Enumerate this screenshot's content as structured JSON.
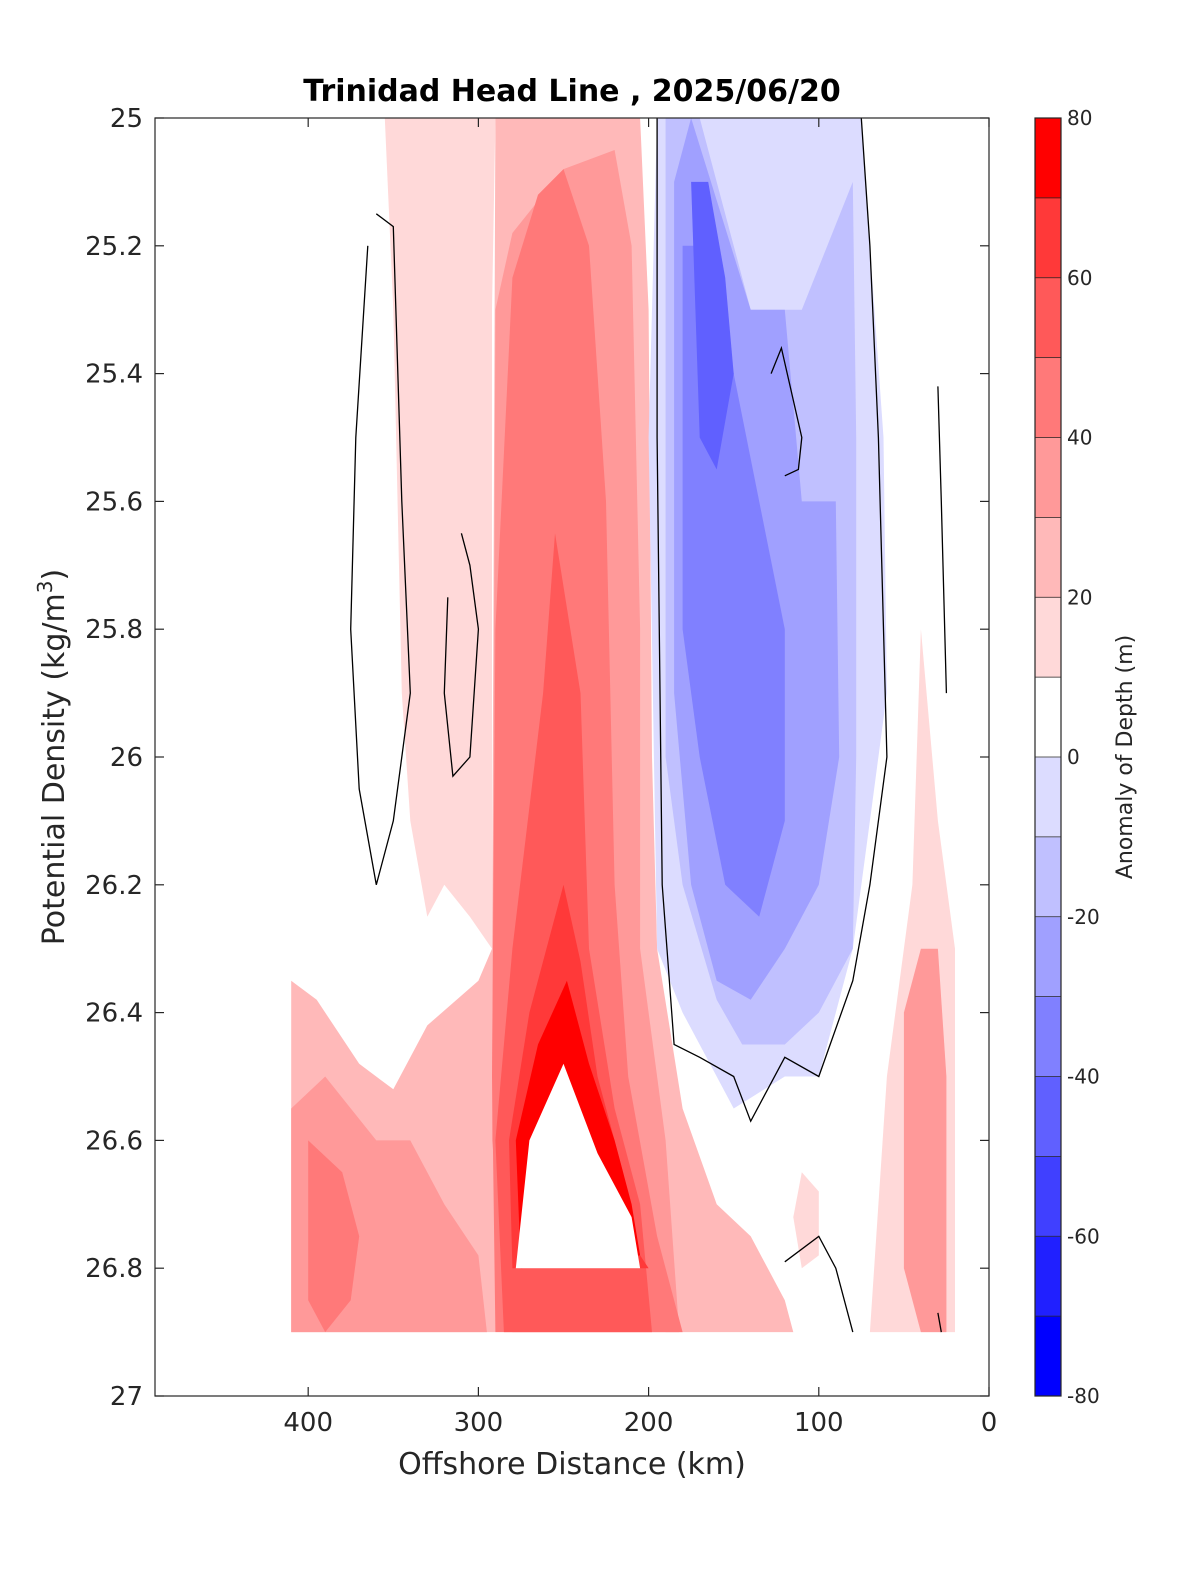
{
  "chart_data": {
    "type": "contour",
    "title": "Trinidad Head Line , 2025/06/20",
    "xlabel": "Offshore Distance (km)",
    "ylabel": "Potential Density (kg/m",
    "ylabel_sup": "3",
    "ylabel_close": ")",
    "xlim": [
      490,
      0
    ],
    "ylim": [
      25,
      27
    ],
    "x_ticks": [
      400,
      300,
      200,
      100,
      0
    ],
    "x_tick_labels": [
      "400",
      "300",
      "200",
      "100",
      "0"
    ],
    "y_ticks": [
      25,
      25.2,
      25.4,
      25.6,
      25.8,
      26,
      26.2,
      26.4,
      26.6,
      26.8,
      27
    ],
    "y_tick_labels": [
      "25",
      "25.2",
      "25.4",
      "25.6",
      "25.8",
      "26",
      "26.2",
      "26.4",
      "26.6",
      "26.8",
      "27"
    ],
    "colorbar": {
      "label": "Anomaly of Depth (m)",
      "limits": [
        -80,
        80
      ],
      "levels": [
        -80,
        -70,
        -60,
        -50,
        -40,
        -30,
        -20,
        -10,
        0,
        10,
        20,
        30,
        40,
        50,
        60,
        70,
        80
      ],
      "tick_values": [
        80,
        60,
        40,
        20,
        0,
        -20,
        -40,
        -60,
        -80
      ],
      "tick_labels": [
        "80",
        "60",
        "40",
        "20",
        "0",
        "-20",
        "-40",
        "-60",
        "-80"
      ],
      "colors": [
        "#0000ff",
        "#2020ff",
        "#4040ff",
        "#6060ff",
        "#8080ff",
        "#a0a0ff",
        "#c0c0ff",
        "#dcdcff",
        "#ffffff",
        "#ffd9d9",
        "#ffb9b9",
        "#ff9999",
        "#ff7979",
        "#ff5959",
        "#ff3939",
        "#ff0000"
      ]
    },
    "regions": [
      {
        "name": "warm-outer-band",
        "level": 10,
        "points": [
          [
            410,
            25
          ],
          [
            355,
            25
          ],
          [
            350,
            25.3
          ],
          [
            345,
            25.9
          ],
          [
            340,
            26.1
          ],
          [
            330,
            26.25
          ],
          [
            320,
            26.2
          ],
          [
            305,
            26.25
          ],
          [
            292,
            26.3
          ],
          [
            292,
            25.3
          ],
          [
            290,
            25
          ],
          [
            410,
            25.0
          ]
        ]
      },
      {
        "name": "warm-near-ridge",
        "level": 20,
        "points": [
          [
            290,
            25
          ],
          [
            205,
            25
          ],
          [
            200,
            25.3
          ],
          [
            198,
            26
          ],
          [
            195,
            26.3
          ],
          [
            180,
            26.55
          ],
          [
            160,
            26.7
          ],
          [
            140,
            26.75
          ],
          [
            120,
            26.85
          ],
          [
            115,
            26.9
          ],
          [
            190,
            26.9
          ],
          [
            200,
            26.8
          ],
          [
            280,
            26.8
          ],
          [
            290,
            26.9
          ],
          [
            410,
            26.9
          ],
          [
            410,
            26.35
          ],
          [
            395,
            26.38
          ],
          [
            370,
            26.48
          ],
          [
            350,
            26.52
          ],
          [
            330,
            26.42
          ],
          [
            300,
            26.35
          ],
          [
            292,
            26.3
          ]
        ]
      },
      {
        "name": "warm-core-30",
        "level": 30,
        "points": [
          [
            290,
            25.3
          ],
          [
            280,
            25.18
          ],
          [
            250,
            25.08
          ],
          [
            220,
            25.05
          ],
          [
            210,
            25.2
          ],
          [
            205,
            25.8
          ],
          [
            205,
            26.3
          ],
          [
            190,
            26.6
          ],
          [
            182,
            26.9
          ],
          [
            280,
            26.9
          ],
          [
            292,
            26.6
          ]
        ]
      },
      {
        "name": "warm-core-40",
        "level": 40,
        "points": [
          [
            280,
            25.25
          ],
          [
            265,
            25.12
          ],
          [
            250,
            25.08
          ],
          [
            235,
            25.2
          ],
          [
            225,
            25.6
          ],
          [
            220,
            26.2
          ],
          [
            212,
            26.5
          ],
          [
            195,
            26.75
          ],
          [
            180,
            26.9
          ],
          [
            290,
            26.9
          ],
          [
            292,
            26.5
          ],
          [
            290,
            25.8
          ]
        ]
      },
      {
        "name": "warm-core-50",
        "level": 50,
        "points": [
          [
            255,
            25.65
          ],
          [
            240,
            25.9
          ],
          [
            235,
            26.3
          ],
          [
            220,
            26.55
          ],
          [
            205,
            26.7
          ],
          [
            198,
            26.9
          ],
          [
            285,
            26.9
          ],
          [
            290,
            26.6
          ],
          [
            280,
            26.3
          ],
          [
            262,
            25.9
          ]
        ]
      },
      {
        "name": "warm-core-60",
        "level": 60,
        "points": [
          [
            250,
            26.2
          ],
          [
            240,
            26.32
          ],
          [
            230,
            26.5
          ],
          [
            215,
            26.65
          ],
          [
            205,
            26.78
          ],
          [
            200,
            26.8
          ],
          [
            280,
            26.8
          ],
          [
            282,
            26.6
          ],
          [
            270,
            26.4
          ]
        ]
      },
      {
        "name": "warm-core-70",
        "level": 70,
        "points": [
          [
            248,
            26.35
          ],
          [
            235,
            26.48
          ],
          [
            220,
            26.6
          ],
          [
            210,
            26.7
          ],
          [
            205,
            26.78
          ],
          [
            275,
            26.8
          ],
          [
            278,
            26.6
          ],
          [
            265,
            26.45
          ]
        ]
      },
      {
        "name": "warm-core-80",
        "level": 80,
        "points": [
          [
            250,
            26.48
          ],
          [
            230,
            26.62
          ],
          [
            210,
            26.72
          ],
          [
            205,
            26.8
          ],
          [
            278,
            26.8
          ],
          [
            270,
            26.6
          ]
        ]
      },
      {
        "name": "warm-deep-west",
        "level": 30,
        "points": [
          [
            410,
            26.55
          ],
          [
            390,
            26.5
          ],
          [
            360,
            26.6
          ],
          [
            340,
            26.6
          ],
          [
            320,
            26.7
          ],
          [
            300,
            26.78
          ],
          [
            295,
            26.9
          ],
          [
            410,
            26.9
          ]
        ]
      },
      {
        "name": "warm-deep-west-40",
        "level": 40,
        "points": [
          [
            400,
            26.6
          ],
          [
            380,
            26.65
          ],
          [
            370,
            26.75
          ],
          [
            375,
            26.85
          ],
          [
            390,
            26.9
          ],
          [
            400,
            26.85
          ]
        ]
      },
      {
        "name": "warm-near-coast",
        "level": 10,
        "points": [
          [
            40,
            25.8
          ],
          [
            30,
            26.1
          ],
          [
            20,
            26.3
          ],
          [
            20,
            26.9
          ],
          [
            70,
            26.9
          ],
          [
            60,
            26.5
          ],
          [
            45,
            26.2
          ]
        ]
      },
      {
        "name": "warm-near-coast-30",
        "level": 30,
        "points": [
          [
            40,
            26.3
          ],
          [
            50,
            26.4
          ],
          [
            50,
            26.8
          ],
          [
            40,
            26.9
          ],
          [
            25,
            26.9
          ],
          [
            25,
            26.5
          ],
          [
            30,
            26.3
          ]
        ]
      },
      {
        "name": "warm-small",
        "level": 10,
        "points": [
          [
            110,
            26.65
          ],
          [
            100,
            26.68
          ],
          [
            100,
            26.78
          ],
          [
            110,
            26.8
          ],
          [
            115,
            26.72
          ]
        ]
      },
      {
        "name": "cold-10",
        "level": -10,
        "points": [
          [
            195,
            25
          ],
          [
            200,
            25.5
          ],
          [
            195,
            26.3
          ],
          [
            180,
            26.4
          ],
          [
            160,
            26.5
          ],
          [
            150,
            26.55
          ],
          [
            120,
            26.5
          ],
          [
            100,
            26.5
          ],
          [
            80,
            26.3
          ],
          [
            70,
            26.1
          ],
          [
            60,
            25.9
          ],
          [
            62,
            25.5
          ],
          [
            70,
            25.2
          ],
          [
            75,
            25
          ]
        ]
      },
      {
        "name": "cold-20",
        "level": -20,
        "points": [
          [
            190,
            25
          ],
          [
            190,
            26
          ],
          [
            180,
            26.2
          ],
          [
            160,
            26.38
          ],
          [
            145,
            26.45
          ],
          [
            120,
            26.45
          ],
          [
            100,
            26.4
          ],
          [
            80,
            26.3
          ],
          [
            78,
            26
          ],
          [
            78,
            25.5
          ],
          [
            80,
            25.1
          ],
          [
            110,
            25.3
          ],
          [
            140,
            25.3
          ],
          [
            170,
            25
          ]
        ]
      },
      {
        "name": "cold-30",
        "level": -30,
        "points": [
          [
            185,
            25.1
          ],
          [
            185,
            25.9
          ],
          [
            175,
            26.2
          ],
          [
            160,
            26.35
          ],
          [
            140,
            26.38
          ],
          [
            120,
            26.3
          ],
          [
            100,
            26.2
          ],
          [
            88,
            26
          ],
          [
            90,
            25.6
          ],
          [
            110,
            25.6
          ],
          [
            120,
            25.3
          ],
          [
            140,
            25.3
          ],
          [
            175,
            25
          ]
        ]
      },
      {
        "name": "cold-40",
        "level": -40,
        "points": [
          [
            180,
            25.2
          ],
          [
            180,
            25.8
          ],
          [
            170,
            26
          ],
          [
            155,
            26.2
          ],
          [
            135,
            26.25
          ],
          [
            120,
            26.1
          ],
          [
            120,
            25.8
          ],
          [
            135,
            25.6
          ],
          [
            150,
            25.4
          ],
          [
            165,
            25.2
          ]
        ]
      },
      {
        "name": "cold-50",
        "level": -50,
        "points": [
          [
            175,
            25.1
          ],
          [
            170,
            25.5
          ],
          [
            160,
            25.55
          ],
          [
            150,
            25.4
          ],
          [
            155,
            25.25
          ],
          [
            165,
            25.1
          ]
        ]
      }
    ],
    "contour_lines": [
      {
        "points": [
          [
            360,
            25.15
          ],
          [
            350,
            25.17
          ],
          [
            345,
            25.6
          ],
          [
            340,
            25.9
          ],
          [
            350,
            26.1
          ],
          [
            360,
            26.2
          ],
          [
            370,
            26.05
          ],
          [
            375,
            25.8
          ],
          [
            372,
            25.5
          ],
          [
            365,
            25.2
          ]
        ]
      },
      {
        "points": [
          [
            310,
            25.65
          ],
          [
            305,
            25.7
          ],
          [
            300,
            25.8
          ],
          [
            305,
            26
          ],
          [
            315,
            26.03
          ],
          [
            320,
            25.9
          ],
          [
            318,
            25.75
          ]
        ]
      },
      {
        "points": [
          [
            195,
            25
          ],
          [
            195,
            25.5
          ],
          [
            192,
            26.2
          ],
          [
            185,
            26.45
          ],
          [
            170,
            26.47
          ],
          [
            150,
            26.5
          ],
          [
            140,
            26.57
          ],
          [
            120,
            26.47
          ],
          [
            100,
            26.5
          ],
          [
            80,
            26.35
          ],
          [
            70,
            26.2
          ],
          [
            60,
            26
          ],
          [
            65,
            25.5
          ],
          [
            70,
            25.2
          ],
          [
            75,
            25
          ]
        ]
      },
      {
        "points": [
          [
            128,
            25.4
          ],
          [
            122,
            25.36
          ],
          [
            110,
            25.5
          ],
          [
            112,
            25.55
          ],
          [
            120,
            25.56
          ]
        ]
      },
      {
        "points": [
          [
            30,
            25.42
          ],
          [
            28,
            25.6
          ],
          [
            25,
            25.9
          ]
        ]
      },
      {
        "points": [
          [
            120,
            26.79
          ],
          [
            100,
            26.75
          ],
          [
            90,
            26.8
          ],
          [
            80,
            26.9
          ]
        ]
      },
      {
        "points": [
          [
            30,
            26.87
          ],
          [
            28,
            26.9
          ]
        ]
      }
    ]
  }
}
